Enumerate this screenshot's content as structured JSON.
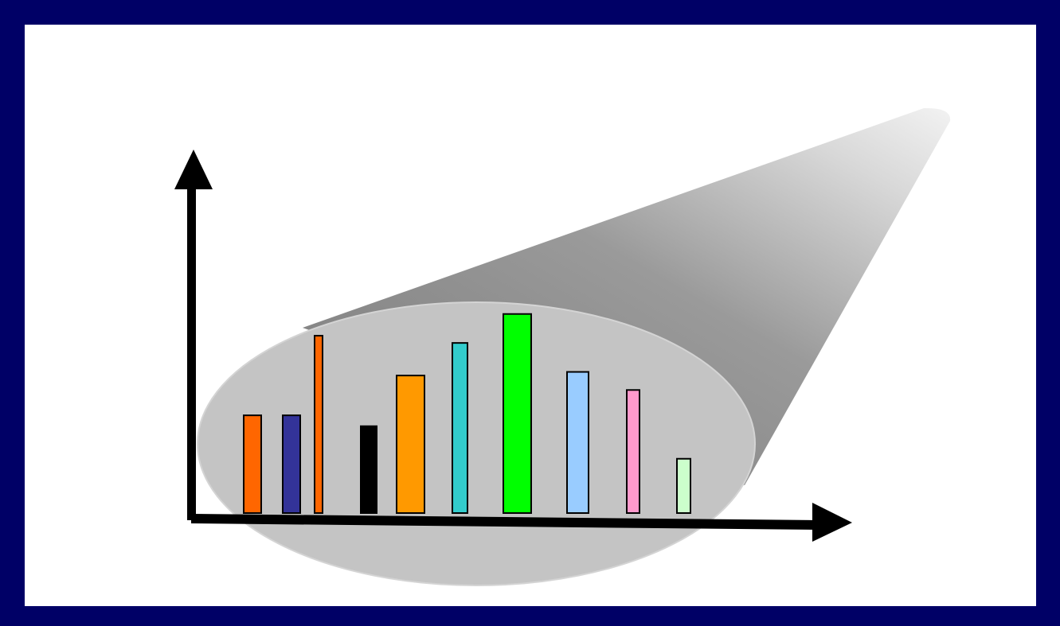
{
  "chart_data": {
    "type": "bar",
    "categories": [
      null,
      null,
      null,
      null,
      null,
      null,
      null,
      null,
      null,
      null
    ],
    "values": [
      27,
      27,
      49,
      24,
      38,
      47,
      55,
      39,
      34,
      15
    ],
    "colors": [
      "#ff6600",
      "#333399",
      "#ff6600",
      "#000000",
      "#ff9900",
      "#33cccc",
      "#00ff00",
      "#99ccff",
      "#ff99cc",
      "#ccffcc"
    ],
    "ylim": [
      0,
      100
    ]
  }
}
